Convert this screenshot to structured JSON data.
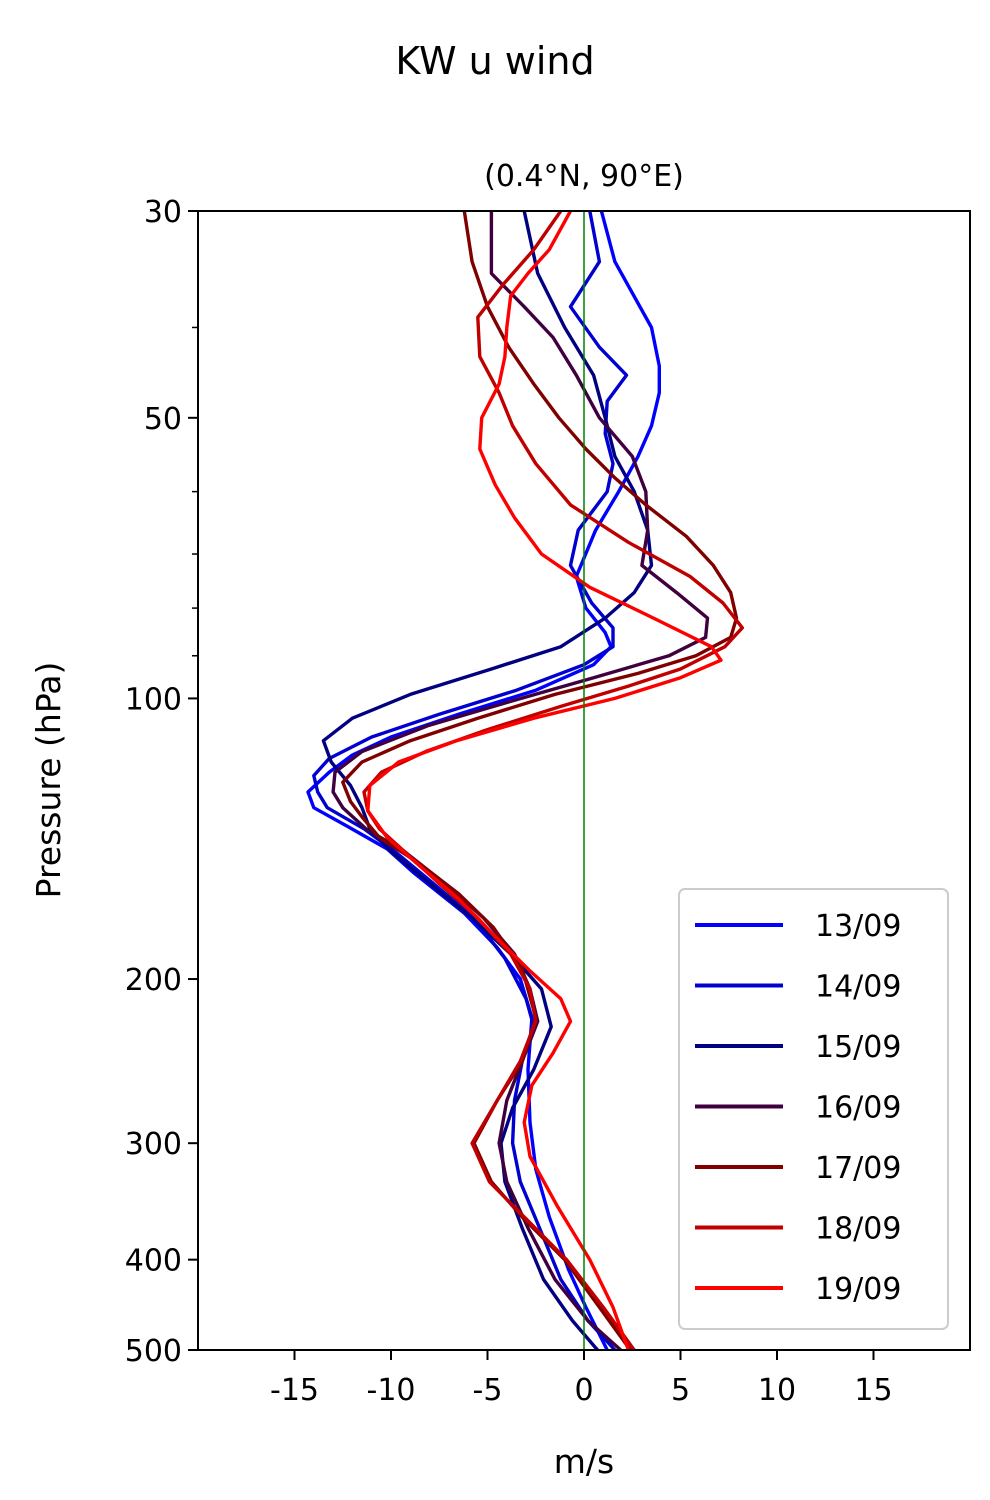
{
  "chart_data": {
    "type": "line",
    "suptitle": "KW u wind",
    "title": "(0.4°N, 90°E)",
    "xlabel": "m/s",
    "ylabel": "Pressure (hPa)",
    "xlim": [
      -20,
      20
    ],
    "ylim": [
      500,
      30
    ],
    "yscale": "log",
    "xticks": [
      -15,
      -10,
      -5,
      0,
      5,
      10,
      15
    ],
    "xtick_labels": [
      "-15",
      "-10",
      "-5",
      "0",
      "5",
      "10",
      "15"
    ],
    "yticks": [
      30,
      50,
      100,
      200,
      300,
      400,
      500
    ],
    "ytick_labels": [
      "30",
      "50",
      "100",
      "200",
      "300",
      "400",
      "500"
    ],
    "y_minor_ticks": [
      40,
      60,
      70,
      80,
      90
    ],
    "zero_line": {
      "x": 0,
      "color": "#008000"
    },
    "legend_position": "lower-right",
    "grid": false,
    "series": [
      {
        "name": "13/09",
        "color": "#0000ff",
        "points": [
          [
            0.9,
            30
          ],
          [
            1.6,
            34
          ],
          [
            3.5,
            40
          ],
          [
            3.9,
            44
          ],
          [
            3.9,
            47
          ],
          [
            3.5,
            51
          ],
          [
            2.8,
            55
          ],
          [
            1.8,
            60
          ],
          [
            0.6,
            66
          ],
          [
            -0.4,
            74
          ],
          [
            0.1,
            80
          ],
          [
            1.1,
            85
          ],
          [
            1.4,
            88
          ],
          [
            0.5,
            92
          ],
          [
            -2.5,
            98
          ],
          [
            -6.5,
            104
          ],
          [
            -10,
            110
          ],
          [
            -12,
            115
          ],
          [
            -13.2,
            120
          ],
          [
            -14.3,
            126
          ],
          [
            -14,
            131
          ],
          [
            -12.3,
            137
          ],
          [
            -10.2,
            145
          ],
          [
            -8.8,
            154
          ],
          [
            -6.2,
            170
          ],
          [
            -4.5,
            185
          ],
          [
            -3.3,
            200
          ],
          [
            -2.7,
            220
          ],
          [
            -2.9,
            250
          ],
          [
            -2.8,
            285
          ],
          [
            -2.5,
            320
          ],
          [
            -1.8,
            360
          ],
          [
            -0.8,
            410
          ],
          [
            0.1,
            450
          ],
          [
            1.2,
            500
          ]
        ]
      },
      {
        "name": "14/09",
        "color": "#0000d0",
        "points": [
          [
            0.3,
            30
          ],
          [
            0.8,
            34
          ],
          [
            -0.7,
            38
          ],
          [
            0.8,
            42
          ],
          [
            2.2,
            45
          ],
          [
            1.2,
            48
          ],
          [
            1.1,
            52
          ],
          [
            1.5,
            56
          ],
          [
            1.2,
            60
          ],
          [
            -0.3,
            66
          ],
          [
            -0.7,
            72
          ],
          [
            0.4,
            79
          ],
          [
            1.5,
            84
          ],
          [
            1.5,
            88
          ],
          [
            0,
            92
          ],
          [
            -3.5,
            98
          ],
          [
            -7.5,
            104
          ],
          [
            -11,
            110
          ],
          [
            -13.2,
            116
          ],
          [
            -14,
            121
          ],
          [
            -13.8,
            126
          ],
          [
            -13.3,
            131
          ],
          [
            -11.4,
            138
          ],
          [
            -9.8,
            146
          ],
          [
            -7.8,
            158
          ],
          [
            -5.7,
            172
          ],
          [
            -4.1,
            190
          ],
          [
            -3,
            210
          ],
          [
            -2.6,
            225
          ],
          [
            -3.2,
            245
          ],
          [
            -3.6,
            270
          ],
          [
            -3.7,
            300
          ],
          [
            -3.3,
            330
          ],
          [
            -2.3,
            370
          ],
          [
            -1.2,
            420
          ],
          [
            0.2,
            465
          ],
          [
            1.6,
            500
          ]
        ]
      },
      {
        "name": "15/09",
        "color": "#000080",
        "points": [
          [
            -3.1,
            30
          ],
          [
            -2.4,
            35
          ],
          [
            -1,
            40
          ],
          [
            0.5,
            45
          ],
          [
            1.1,
            50
          ],
          [
            1.6,
            55
          ],
          [
            2.6,
            60
          ],
          [
            3.3,
            66
          ],
          [
            3.5,
            72
          ],
          [
            2.6,
            77
          ],
          [
            1.1,
            82
          ],
          [
            -1.2,
            88
          ],
          [
            -4.8,
            93
          ],
          [
            -9,
            99
          ],
          [
            -12,
            105
          ],
          [
            -13.5,
            111
          ],
          [
            -13.1,
            117
          ],
          [
            -12.1,
            124
          ],
          [
            -11.5,
            131
          ],
          [
            -11.1,
            138
          ],
          [
            -10,
            146
          ],
          [
            -8,
            158
          ],
          [
            -5.8,
            172
          ],
          [
            -3.8,
            188
          ],
          [
            -2.2,
            205
          ],
          [
            -1.7,
            225
          ],
          [
            -2.6,
            250
          ],
          [
            -3.7,
            275
          ],
          [
            -4.3,
            300
          ],
          [
            -4.1,
            330
          ],
          [
            -3.2,
            370
          ],
          [
            -2.1,
            420
          ],
          [
            -0.6,
            465
          ],
          [
            0.7,
            500
          ]
        ]
      },
      {
        "name": "16/09",
        "color": "#400040",
        "points": [
          [
            -4.8,
            30
          ],
          [
            -4.8,
            35
          ],
          [
            -3.1,
            38
          ],
          [
            -1.6,
            41
          ],
          [
            -0.4,
            45
          ],
          [
            0.8,
            50
          ],
          [
            2.5,
            55
          ],
          [
            3.2,
            60
          ],
          [
            3.3,
            66
          ],
          [
            3,
            72
          ],
          [
            4.8,
            77
          ],
          [
            6.4,
            82
          ],
          [
            6.3,
            86
          ],
          [
            4.4,
            90
          ],
          [
            0.5,
            95
          ],
          [
            -4,
            101
          ],
          [
            -8.1,
            107
          ],
          [
            -11.5,
            114
          ],
          [
            -12.9,
            120
          ],
          [
            -13,
            126
          ],
          [
            -12.5,
            131
          ],
          [
            -11.3,
            138
          ],
          [
            -9.3,
            146
          ],
          [
            -7.2,
            158
          ],
          [
            -5.2,
            172
          ],
          [
            -3.6,
            188
          ],
          [
            -2.8,
            205
          ],
          [
            -2.4,
            222
          ],
          [
            -3.2,
            245
          ],
          [
            -4,
            270
          ],
          [
            -4.4,
            300
          ],
          [
            -4,
            330
          ],
          [
            -2.9,
            370
          ],
          [
            -1.5,
            420
          ],
          [
            0.2,
            465
          ],
          [
            1.9,
            500
          ]
        ]
      },
      {
        "name": "17/09",
        "color": "#800000",
        "points": [
          [
            -6.2,
            30
          ],
          [
            -5.8,
            34
          ],
          [
            -5,
            38
          ],
          [
            -3.9,
            42
          ],
          [
            -2.6,
            46
          ],
          [
            -1.3,
            50
          ],
          [
            0.1,
            54
          ],
          [
            1.6,
            58
          ],
          [
            3.2,
            62
          ],
          [
            5.3,
            67
          ],
          [
            6.7,
            72
          ],
          [
            7.6,
            77
          ],
          [
            7.9,
            82
          ],
          [
            7.6,
            86
          ],
          [
            5.8,
            90
          ],
          [
            2.8,
            94
          ],
          [
            -1.5,
            99
          ],
          [
            -5.5,
            105
          ],
          [
            -9,
            111
          ],
          [
            -11.5,
            117
          ],
          [
            -12.5,
            123
          ],
          [
            -12.1,
            129
          ],
          [
            -11.5,
            134
          ],
          [
            -10.6,
            141
          ],
          [
            -8.6,
            150
          ],
          [
            -6.5,
            162
          ],
          [
            -4.7,
            176
          ],
          [
            -3.2,
            195
          ],
          [
            -2.5,
            220
          ],
          [
            -3.2,
            245
          ],
          [
            -4.5,
            270
          ],
          [
            -5.7,
            300
          ],
          [
            -4.8,
            330
          ],
          [
            -3.2,
            360
          ],
          [
            -1,
            400
          ],
          [
            0.8,
            450
          ],
          [
            2.4,
            500
          ]
        ]
      },
      {
        "name": "18/09",
        "color": "#c00000",
        "points": [
          [
            -1.2,
            30
          ],
          [
            -2.6,
            33
          ],
          [
            -4.2,
            36
          ],
          [
            -5.5,
            39
          ],
          [
            -5.4,
            43
          ],
          [
            -4.4,
            47
          ],
          [
            -3.7,
            51
          ],
          [
            -2.5,
            56
          ],
          [
            -0.7,
            62
          ],
          [
            2.3,
            68
          ],
          [
            5.5,
            74
          ],
          [
            7.2,
            79
          ],
          [
            8.2,
            84
          ],
          [
            7.3,
            88
          ],
          [
            5,
            93
          ],
          [
            2.3,
            97
          ],
          [
            -1.2,
            102
          ],
          [
            -5,
            108
          ],
          [
            -8.2,
            114
          ],
          [
            -10.5,
            120
          ],
          [
            -11.4,
            126
          ],
          [
            -11.2,
            132
          ],
          [
            -10.6,
            138
          ],
          [
            -9.3,
            146
          ],
          [
            -7.5,
            158
          ],
          [
            -5.5,
            172
          ],
          [
            -3.8,
            188
          ],
          [
            -2.8,
            205
          ],
          [
            -2.5,
            222
          ],
          [
            -3.3,
            245
          ],
          [
            -4.5,
            270
          ],
          [
            -5.8,
            300
          ],
          [
            -4.9,
            330
          ],
          [
            -3.1,
            360
          ],
          [
            -0.9,
            400
          ],
          [
            1,
            450
          ],
          [
            2.6,
            500
          ]
        ]
      },
      {
        "name": "19/09",
        "color": "#ff0000",
        "points": [
          [
            -0.7,
            30
          ],
          [
            -1.8,
            33
          ],
          [
            -2.9,
            35
          ],
          [
            -3.8,
            37
          ],
          [
            -4,
            40
          ],
          [
            -4.1,
            43
          ],
          [
            -4.4,
            46
          ],
          [
            -5.3,
            50
          ],
          [
            -5.4,
            54
          ],
          [
            -4.6,
            59
          ],
          [
            -3.6,
            64
          ],
          [
            -2.2,
            70
          ],
          [
            0.3,
            76
          ],
          [
            3.6,
            82
          ],
          [
            6.6,
            88
          ],
          [
            7.1,
            91
          ],
          [
            5,
            95
          ],
          [
            1.6,
            100
          ],
          [
            -2.6,
            105
          ],
          [
            -6.6,
            111
          ],
          [
            -9.6,
            117
          ],
          [
            -11.1,
            124
          ],
          [
            -11.2,
            132
          ],
          [
            -10.2,
            141
          ],
          [
            -8.4,
            152
          ],
          [
            -6.5,
            164
          ],
          [
            -4.6,
            180
          ],
          [
            -2.8,
            196
          ],
          [
            -1.2,
            210
          ],
          [
            -0.7,
            222
          ],
          [
            -1.6,
            240
          ],
          [
            -2.7,
            260
          ],
          [
            -3.1,
            285
          ],
          [
            -2.8,
            310
          ],
          [
            -1.4,
            350
          ],
          [
            0.3,
            400
          ],
          [
            1.5,
            450
          ],
          [
            2.3,
            500
          ]
        ]
      }
    ]
  }
}
